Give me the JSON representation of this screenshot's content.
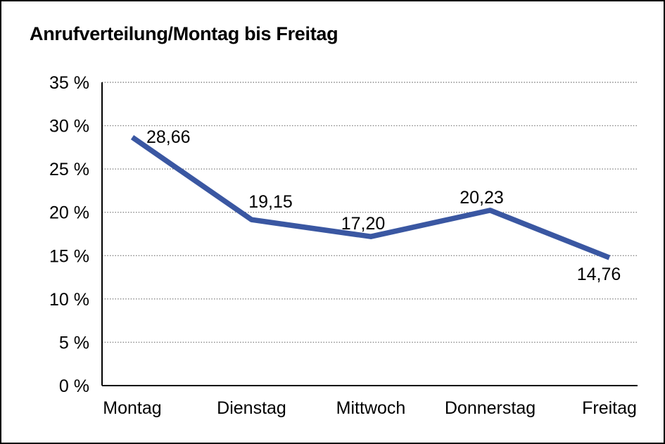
{
  "chart_data": {
    "type": "line",
    "title": "Anrufverteilung/Montag bis Freitag",
    "categories": [
      "Montag",
      "Dienstag",
      "Mittwoch",
      "Donnerstag",
      "Freitag"
    ],
    "values": [
      28.66,
      19.15,
      17.2,
      20.23,
      14.76
    ],
    "point_labels": [
      "28,66",
      "19,15",
      "17,20",
      "20,23",
      "14,76"
    ],
    "ytick_values": [
      0,
      5,
      10,
      15,
      20,
      25,
      30,
      35
    ],
    "ytick_labels": [
      "0 %",
      "5 %",
      "10 %",
      "15 %",
      "20 %",
      "25 %",
      "30 %",
      "35 %"
    ],
    "ylim": [
      0,
      35
    ],
    "xlabel": "",
    "ylabel": "",
    "legend": "none",
    "grid": "horizontal-dotted",
    "colors": {
      "line": "#3a57a2",
      "text": "#000000",
      "grid": "#808080",
      "axis": "#000000",
      "background": "#ffffff"
    }
  }
}
